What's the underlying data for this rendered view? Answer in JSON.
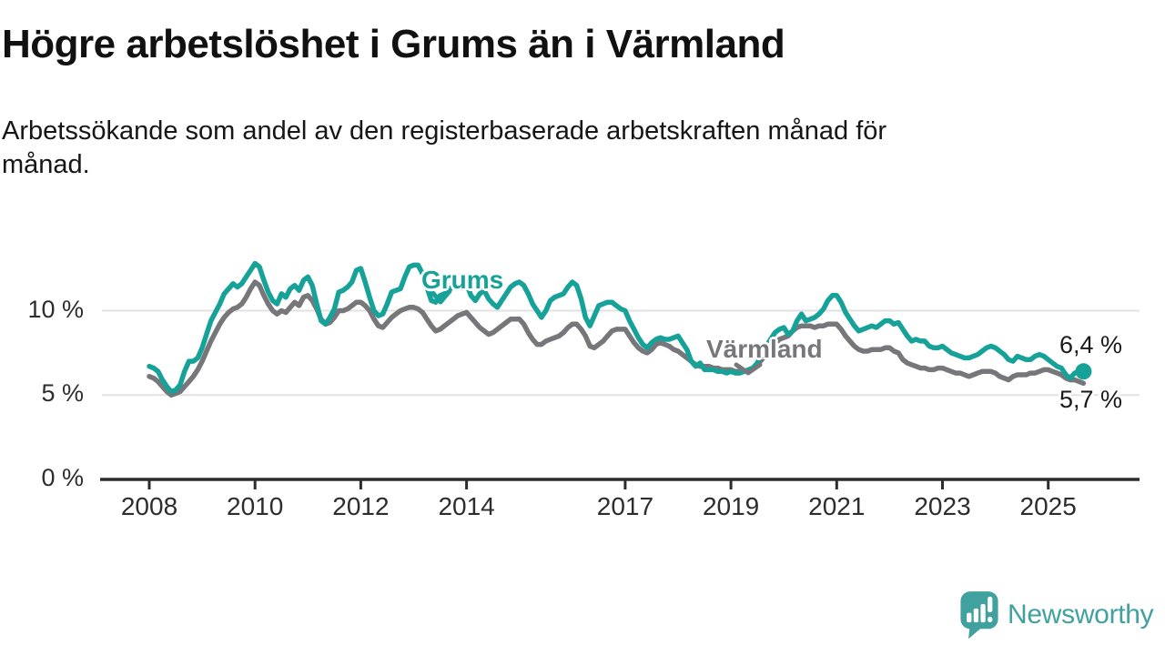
{
  "header": {
    "title": "Högre arbetslöshet i Grums än i Värmland",
    "subtitle": "Arbetssökande som andel av den registerbaserade arbetskraften månad för månad."
  },
  "chart_data": {
    "type": "line",
    "x_start_year": 2008,
    "points_per_month": 1,
    "x_ticks": [
      2008,
      2010,
      2012,
      2014,
      2017,
      2019,
      2021,
      2023,
      2025
    ],
    "y_ticks": [
      {
        "value": 0,
        "label": "0 %"
      },
      {
        "value": 5,
        "label": "5 %"
      },
      {
        "value": 10,
        "label": "10 %"
      }
    ],
    "ylim": [
      0,
      13.5
    ],
    "grid": "horizontal-only",
    "colors": {
      "grums": "#17a299",
      "varmland": "#77777b",
      "gridline": "#e2e2e2",
      "axis": "#2d2d2d"
    },
    "series": [
      {
        "name": "Grums",
        "color": "#17a299",
        "end_label": "6,4 %",
        "end_value": 6.4,
        "values": [
          6.7,
          6.6,
          6.4,
          5.9,
          5.5,
          5.2,
          5.3,
          5.6,
          6.4,
          7.0,
          7.0,
          7.2,
          7.8,
          8.6,
          9.4,
          9.9,
          10.4,
          11.0,
          11.3,
          11.6,
          11.4,
          11.6,
          12.0,
          12.4,
          12.8,
          12.6,
          11.8,
          11.1,
          10.6,
          10.4,
          11.0,
          10.8,
          11.3,
          11.5,
          11.2,
          11.8,
          12.0,
          11.5,
          10.4,
          9.4,
          9.2,
          9.6,
          10.1,
          11.1,
          11.2,
          11.4,
          11.7,
          12.4,
          12.5,
          11.7,
          10.8,
          10.0,
          9.7,
          9.8,
          10.4,
          11.1,
          11.2,
          11.3,
          12.0,
          12.6,
          12.7,
          12.7,
          12.2,
          11.4,
          10.6,
          10.5,
          10.9,
          11.0,
          11.2,
          11.5,
          11.7,
          11.7,
          11.6,
          10.9,
          10.6,
          11.0,
          11.2,
          10.7,
          10.4,
          10.2,
          10.6,
          11.0,
          11.4,
          11.6,
          11.7,
          11.5,
          11.0,
          10.4,
          10.0,
          9.6,
          10.0,
          10.6,
          10.8,
          10.9,
          11.0,
          11.4,
          11.7,
          11.5,
          10.7,
          9.6,
          9.1,
          9.7,
          10.3,
          10.4,
          10.5,
          10.5,
          10.3,
          10.1,
          10.0,
          9.4,
          8.9,
          8.4,
          8.0,
          7.8,
          8.1,
          8.3,
          8.4,
          8.3,
          8.3,
          8.4,
          8.5,
          8.1,
          7.7,
          7.0,
          6.7,
          6.9,
          6.5,
          6.5,
          6.5,
          6.4,
          6.4,
          6.3,
          6.4,
          6.3,
          6.3,
          6.4,
          6.5,
          6.6,
          6.9,
          7.4,
          7.9,
          8.3,
          8.7,
          8.9,
          9.0,
          8.6,
          8.8,
          9.4,
          9.8,
          9.4,
          9.5,
          9.6,
          9.8,
          10.1,
          10.6,
          10.9,
          10.9,
          10.5,
          9.9,
          9.5,
          9.1,
          8.8,
          8.9,
          9.0,
          9.1,
          9.0,
          9.2,
          9.4,
          9.4,
          9.2,
          9.3,
          8.9,
          8.5,
          8.2,
          8.3,
          8.2,
          8.2,
          7.9,
          7.8,
          7.8,
          7.9,
          7.7,
          7.5,
          7.4,
          7.3,
          7.2,
          7.2,
          7.3,
          7.4,
          7.6,
          7.8,
          7.9,
          7.8,
          7.6,
          7.4,
          7.1,
          7.0,
          7.3,
          7.2,
          7.1,
          7.1,
          7.3,
          7.4,
          7.3,
          7.1,
          6.9,
          6.7,
          6.6,
          6.2,
          6.0,
          6.3,
          6.4,
          6.4
        ]
      },
      {
        "name": "Värmland",
        "color": "#77777b",
        "end_label": "5,7 %",
        "end_value": 5.7,
        "values": [
          6.1,
          6.0,
          5.8,
          5.5,
          5.2,
          5.0,
          5.1,
          5.2,
          5.5,
          5.8,
          6.1,
          6.5,
          7.0,
          7.6,
          8.2,
          8.7,
          9.2,
          9.6,
          9.9,
          10.1,
          10.2,
          10.4,
          10.8,
          11.3,
          11.7,
          11.5,
          10.9,
          10.4,
          10.0,
          9.8,
          10.0,
          9.9,
          10.2,
          10.5,
          10.3,
          10.8,
          10.9,
          10.6,
          10.1,
          9.5,
          9.2,
          9.3,
          9.6,
          10.0,
          10.0,
          10.1,
          10.3,
          10.5,
          10.5,
          10.3,
          10.0,
          9.5,
          9.1,
          9.0,
          9.3,
          9.6,
          9.8,
          10.0,
          10.1,
          10.2,
          10.2,
          10.1,
          9.9,
          9.5,
          9.1,
          8.8,
          8.9,
          9.1,
          9.3,
          9.5,
          9.7,
          9.8,
          9.9,
          9.6,
          9.3,
          9.0,
          8.8,
          8.6,
          8.7,
          8.9,
          9.1,
          9.3,
          9.5,
          9.5,
          9.5,
          9.2,
          8.7,
          8.3,
          8.0,
          8.0,
          8.2,
          8.3,
          8.4,
          8.5,
          8.7,
          9.0,
          9.2,
          9.2,
          8.9,
          8.5,
          7.9,
          7.8,
          8.0,
          8.2,
          8.5,
          8.8,
          8.9,
          8.9,
          8.9,
          8.5,
          8.1,
          7.8,
          7.6,
          7.5,
          7.7,
          8.0,
          8.1,
          8.0,
          7.9,
          7.7,
          7.6,
          7.4,
          7.2,
          7.0,
          6.8,
          6.7,
          6.7,
          6.7,
          6.6,
          6.6,
          6.5,
          6.5,
          6.5,
          6.4,
          6.4,
          6.4,
          6.5,
          6.6,
          6.8,
          7.1,
          7.4,
          7.7,
          8.0,
          8.3,
          8.4,
          8.5,
          8.8,
          9.0,
          9.1,
          9.1,
          9.1,
          9.0,
          9.1,
          9.1,
          9.2,
          9.2,
          9.2,
          8.9,
          8.5,
          8.2,
          7.9,
          7.7,
          7.6,
          7.6,
          7.7,
          7.7,
          7.7,
          7.8,
          7.8,
          7.6,
          7.5,
          7.1,
          6.9,
          6.8,
          6.7,
          6.6,
          6.6,
          6.5,
          6.5,
          6.6,
          6.6,
          6.5,
          6.4,
          6.3,
          6.3,
          6.2,
          6.1,
          6.2,
          6.3,
          6.4,
          6.4,
          6.4,
          6.3,
          6.1,
          6.0,
          5.9,
          6.1,
          6.2,
          6.2,
          6.2,
          6.3,
          6.3,
          6.4,
          6.5,
          6.5,
          6.4,
          6.3,
          6.2,
          6.0,
          5.9,
          5.9,
          5.8,
          5.7
        ]
      }
    ]
  },
  "branding": {
    "logo_text": "Newsworthy",
    "color": "#41a19e"
  }
}
